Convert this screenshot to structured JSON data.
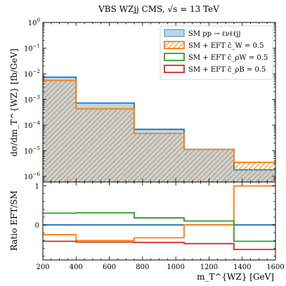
{
  "chart_data": {
    "type": "step",
    "title": "VBS WZjj CMS, √s = 13 TeV",
    "xlabel": "m_T^{WZ} [GeV]",
    "xlim": [
      200,
      1600
    ],
    "bin_edges": [
      200,
      400,
      750,
      1050,
      1350,
      1600
    ],
    "xticks": [
      200,
      400,
      600,
      800,
      1000,
      1200,
      1400,
      1600
    ],
    "top_panel": {
      "ylabel": "dσ/dm_T^{WZ} [fb/GeV]",
      "yscale": "log",
      "ylim": [
        6e-07,
        1
      ],
      "ytick_exponents": [
        -6,
        -5,
        -4,
        -3,
        -2,
        -1,
        0
      ],
      "series": [
        {
          "name": "SM   pp → ℓνℓℓjj",
          "style": "filled-step",
          "color": "#1f77b4",
          "fill": "#b9d7ea",
          "values": [
            0.0074,
            0.00072,
            6.8e-05,
            1.12e-05,
            1.8e-06
          ]
        },
        {
          "name": "SM + EFT c̄_W = 0.5",
          "style": "hatched-step",
          "color": "#ff7f0e",
          "values": [
            0.0055,
            0.00043,
            4.7e-05,
            1.12e-05,
            3.5e-06
          ]
        },
        {
          "name": "SM + EFT c̄_ρW = 0.5",
          "style": "step",
          "color": "#2ca02c",
          "values": []
        },
        {
          "name": "SM + EFT c̄_ρB = 0.5",
          "style": "step",
          "color": "#d62728",
          "values": []
        }
      ]
    },
    "bottom_panel": {
      "ylabel": "Ratio EFT/SM",
      "ylim": [
        -0.9,
        1.1
      ],
      "yticks": [
        0,
        1
      ],
      "series": [
        {
          "name": "SM",
          "color": "#1f77b4",
          "values": [
            0,
            0,
            0,
            0,
            0
          ]
        },
        {
          "name": "SM + EFT c̄_W = 0.5",
          "color": "#ff7f0e",
          "values": [
            -0.25,
            -0.4,
            -0.33,
            0,
            1.0
          ]
        },
        {
          "name": "SM + EFT c̄_ρW = 0.5",
          "color": "#2ca02c",
          "values": [
            0.3,
            0.31,
            0.18,
            0.1,
            -0.42
          ]
        },
        {
          "name": "SM + EFT c̄_ρB = 0.5",
          "color": "#d62728",
          "values": [
            -0.42,
            -0.44,
            -0.45,
            -0.48,
            -0.63
          ]
        }
      ]
    }
  }
}
